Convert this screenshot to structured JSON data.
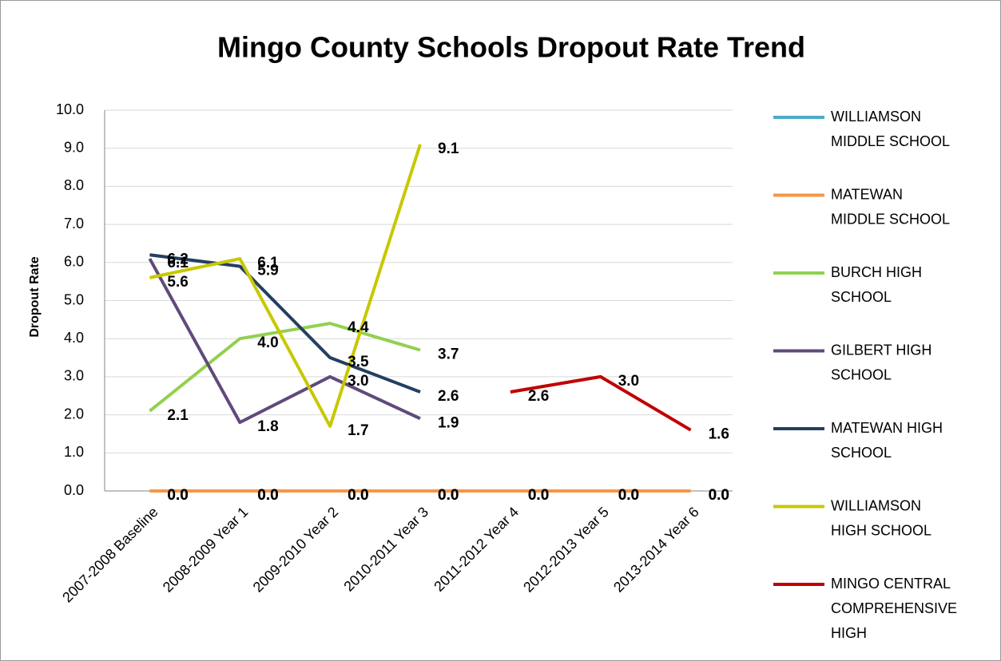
{
  "chart_data": {
    "type": "line",
    "title": "Mingo County Schools Dropout Rate Trend",
    "y_label": "Dropout Rate",
    "categories": [
      "2007-2008 Baseline",
      "2008-2009 Year 1",
      "2009-2010 Year 2",
      "2010-2011 Year 3",
      "2011-2012 Year 4",
      "2012-2013 Year 5",
      "2013-2014 Year 6"
    ],
    "ylim": [
      0,
      10
    ],
    "yticks": [
      {
        "value": 0,
        "label": "0.0"
      },
      {
        "value": 1,
        "label": "1.0"
      },
      {
        "value": 2,
        "label": "2.0"
      },
      {
        "value": 3,
        "label": "3.0"
      },
      {
        "value": 4,
        "label": "4.0"
      },
      {
        "value": 5,
        "label": "5.0"
      },
      {
        "value": 6,
        "label": "6.0"
      },
      {
        "value": 7,
        "label": "7.0"
      },
      {
        "value": 8,
        "label": "8.0"
      },
      {
        "value": 9,
        "label": "9.0"
      },
      {
        "value": 10,
        "label": "10.0"
      }
    ],
    "grid": true,
    "legend": "right",
    "series": [
      {
        "name": "WILLIAMSON MIDDLE SCHOOL",
        "color": "#4bacc6",
        "values": [
          0,
          0,
          0,
          0,
          0,
          0,
          0
        ],
        "value_labels": [
          "0.0",
          "0.0",
          "0.0",
          "0.0",
          "0.0",
          "0.0",
          "0.0"
        ]
      },
      {
        "name": "MATEWAN MIDDLE SCHOOL",
        "color": "#f79646",
        "values": [
          0,
          0,
          0,
          0,
          0,
          0,
          0
        ],
        "value_labels": [
          "0.0",
          "0.0",
          "0.0",
          "0.0",
          "0.0",
          "0.0",
          "0.0"
        ]
      },
      {
        "name": "BURCH HIGH SCHOOL",
        "color": "#92d050",
        "values": [
          2.1,
          4.0,
          4.4,
          3.7,
          null,
          null,
          null
        ],
        "value_labels": [
          "2.1",
          "4.0",
          "4.4",
          "3.7",
          null,
          null,
          null
        ]
      },
      {
        "name": "GILBERT HIGH SCHOOL",
        "color": "#604a7b",
        "values": [
          6.1,
          1.8,
          3.0,
          1.9,
          null,
          null,
          null
        ],
        "value_labels": [
          "6.1",
          "1.8",
          "3.0",
          "1.9",
          null,
          null,
          null
        ]
      },
      {
        "name": "MATEWAN HIGH SCHOOL",
        "color": "#243f60",
        "values": [
          6.2,
          5.9,
          3.5,
          2.6,
          null,
          null,
          null
        ],
        "value_labels": [
          "6.2",
          "5.9",
          "3.5",
          "2.6",
          null,
          null,
          null
        ]
      },
      {
        "name": "WILLIAMSON HIGH SCHOOL",
        "color": "#c8c800",
        "values": [
          5.6,
          6.1,
          1.7,
          9.1,
          null,
          null,
          null
        ],
        "value_labels": [
          "5.6",
          "6.1",
          "1.7",
          "9.1",
          null,
          null,
          null
        ]
      },
      {
        "name": "MINGO CENTRAL COMPREHENSIVE HIGH",
        "color": "#c00000",
        "values": [
          null,
          null,
          null,
          null,
          2.6,
          3.0,
          1.6
        ],
        "value_labels": [
          null,
          null,
          null,
          null,
          "2.6",
          "3.0",
          "1.6"
        ]
      }
    ]
  }
}
